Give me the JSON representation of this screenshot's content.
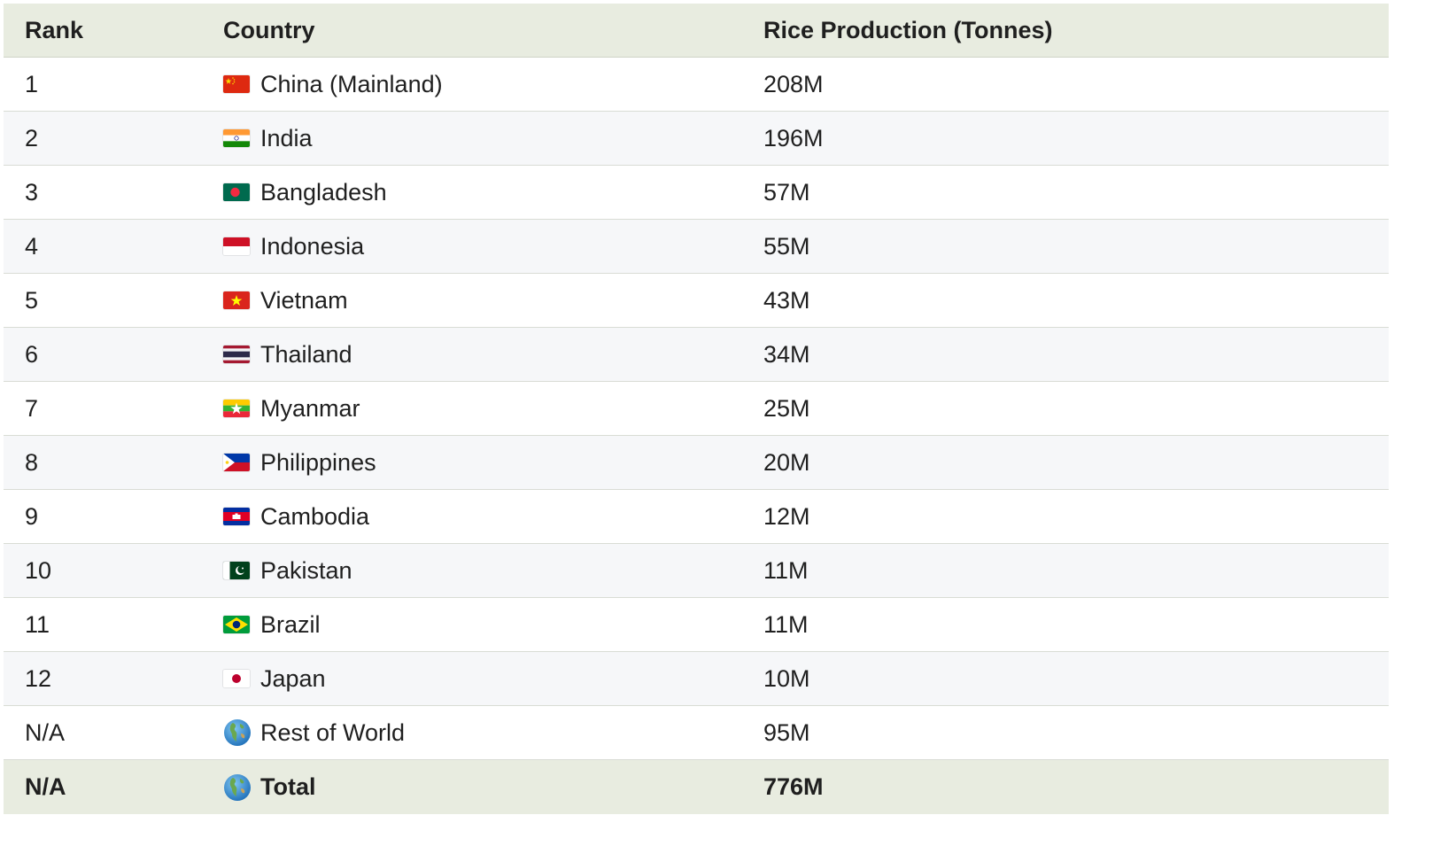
{
  "columns": {
    "rank": "Rank",
    "country": "Country",
    "production": "Rice Production (Tonnes)"
  },
  "rows": [
    {
      "rank": "1",
      "country": "China (Mainland)",
      "flag": "china-flag-icon",
      "production": "208M"
    },
    {
      "rank": "2",
      "country": "India",
      "flag": "india-flag-icon",
      "production": "196M"
    },
    {
      "rank": "3",
      "country": "Bangladesh",
      "flag": "bangladesh-flag-icon",
      "production": "57M"
    },
    {
      "rank": "4",
      "country": "Indonesia",
      "flag": "indonesia-flag-icon",
      "production": "55M"
    },
    {
      "rank": "5",
      "country": "Vietnam",
      "flag": "vietnam-flag-icon",
      "production": "43M"
    },
    {
      "rank": "6",
      "country": "Thailand",
      "flag": "thailand-flag-icon",
      "production": "34M"
    },
    {
      "rank": "7",
      "country": "Myanmar",
      "flag": "myanmar-flag-icon",
      "production": "25M"
    },
    {
      "rank": "8",
      "country": "Philippines",
      "flag": "philippines-flag-icon",
      "production": "20M"
    },
    {
      "rank": "9",
      "country": "Cambodia",
      "flag": "cambodia-flag-icon",
      "production": "12M"
    },
    {
      "rank": "10",
      "country": "Pakistan",
      "flag": "pakistan-flag-icon",
      "production": "11M"
    },
    {
      "rank": "11",
      "country": "Brazil",
      "flag": "brazil-flag-icon",
      "production": "11M"
    },
    {
      "rank": "12",
      "country": "Japan",
      "flag": "japan-flag-icon",
      "production": "10M"
    },
    {
      "rank": "N/A",
      "country": "Rest of World",
      "flag": "globe-icon",
      "production": "95M"
    }
  ],
  "total": {
    "rank": "N/A",
    "country": "Total",
    "flag": "globe-icon",
    "production": "776M"
  },
  "colors": {
    "header_bg": "#e8ece0",
    "alt_row_bg": "#f6f7f9",
    "row_border": "#d9dcd5"
  }
}
